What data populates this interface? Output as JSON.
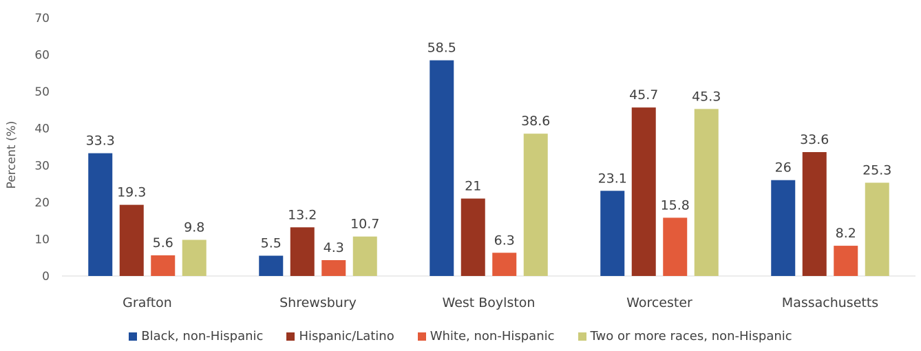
{
  "chart_data": {
    "type": "bar",
    "title": "",
    "xlabel": "",
    "ylabel": "Percent (%)",
    "ylim": [
      0,
      70
    ],
    "yticks": [
      0,
      10,
      20,
      30,
      40,
      50,
      60,
      70
    ],
    "grid": false,
    "legend_position": "bottom",
    "categories": [
      "Grafton",
      "Shrewsbury",
      "West Boylston",
      "Worcester",
      "Massachusetts"
    ],
    "series": [
      {
        "name": "Black, non-Hispanic",
        "color": "#1f4e9c",
        "values": [
          33.3,
          5.5,
          58.5,
          23.1,
          26
        ],
        "labels": [
          "33.3",
          "5.5",
          "58.5",
          "23.1",
          "26"
        ]
      },
      {
        "name": "Hispanic/Latino",
        "color": "#9a3520",
        "values": [
          19.3,
          13.2,
          21,
          45.7,
          33.6
        ],
        "labels": [
          "19.3",
          "13.2",
          "21",
          "45.7",
          "33.6"
        ]
      },
      {
        "name": "White, non-Hispanic",
        "color": "#e35b3a",
        "values": [
          5.6,
          4.3,
          6.3,
          15.8,
          8.2
        ],
        "labels": [
          "5.6",
          "4.3",
          "6.3",
          "15.8",
          "8.2"
        ]
      },
      {
        "name": "Two or more races, non-Hispanic",
        "color": "#cccb7a",
        "values": [
          9.8,
          10.7,
          38.6,
          45.3,
          25.3
        ],
        "labels": [
          "9.8",
          "10.7",
          "38.6",
          "45.3",
          "25.3"
        ]
      }
    ]
  }
}
